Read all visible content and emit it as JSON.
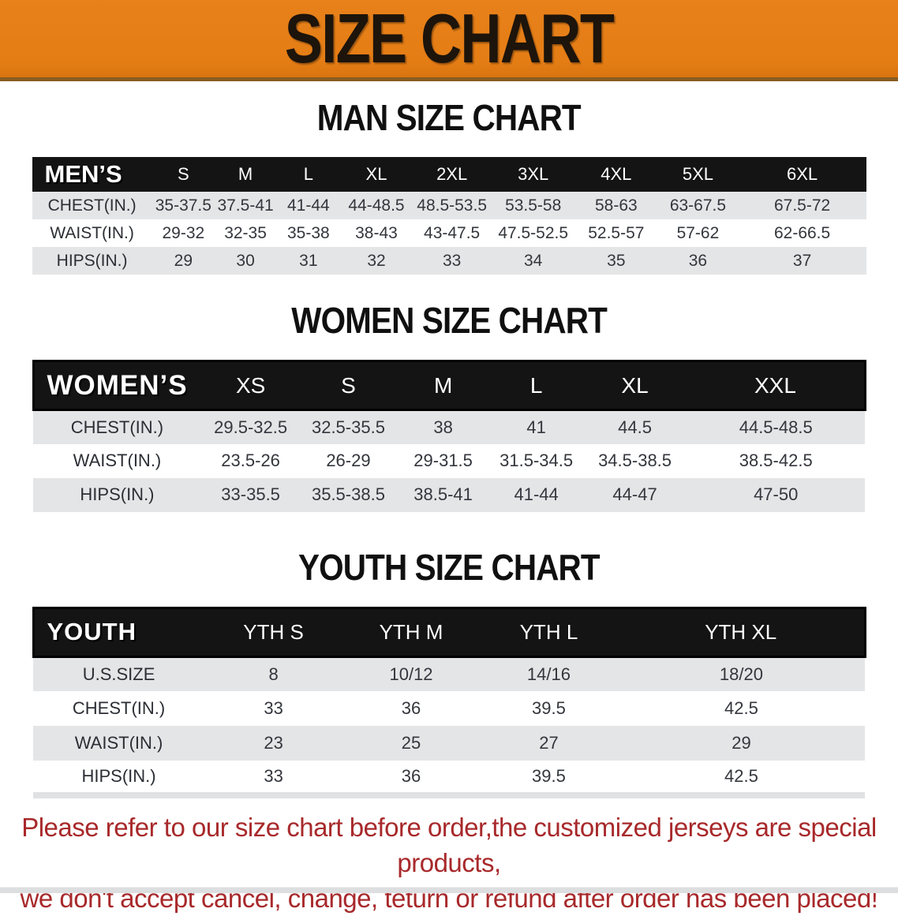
{
  "banner": {
    "title": "SIZE CHART",
    "bg_color": "#e57d15",
    "text_color": "#1d140b"
  },
  "colors": {
    "header_band": "#141414",
    "row_stripe": "#e4e5e7",
    "disclaimer_red": "#a8292b"
  },
  "chart_data": [
    {
      "type": "table",
      "title": "MAN SIZE CHART",
      "corner_label": "MEN’S",
      "columns": [
        "S",
        "M",
        "L",
        "XL",
        "2XL",
        "3XL",
        "4XL",
        "5XL",
        "6XL"
      ],
      "rows": [
        {
          "label": "CHEST(IN.)",
          "values": [
            "35-37.5",
            "37.5-41",
            "41-44",
            "44-48.5",
            "48.5-53.5",
            "53.5-58",
            "58-63",
            "63-67.5",
            "67.5-72"
          ]
        },
        {
          "label": "WAIST(IN.)",
          "values": [
            "29-32",
            "32-35",
            "35-38",
            "38-43",
            "43-47.5",
            "47.5-52.5",
            "52.5-57",
            "57-62",
            "62-66.5"
          ]
        },
        {
          "label": "HIPS(IN.)",
          "values": [
            "29",
            "30",
            "31",
            "32",
            "33",
            "34",
            "35",
            "36",
            "37"
          ]
        }
      ]
    },
    {
      "type": "table",
      "title": "WOMEN SIZE CHART",
      "corner_label": "WOMEN’S",
      "columns": [
        "XS",
        "S",
        "M",
        "L",
        "XL",
        "XXL"
      ],
      "rows": [
        {
          "label": "CHEST(IN.)",
          "values": [
            "29.5-32.5",
            "32.5-35.5",
            "38",
            "41",
            "44.5",
            "44.5-48.5"
          ]
        },
        {
          "label": "WAIST(IN.)",
          "values": [
            "23.5-26",
            "26-29",
            "29-31.5",
            "31.5-34.5",
            "34.5-38.5",
            "38.5-42.5"
          ]
        },
        {
          "label": "HIPS(IN.)",
          "values": [
            "33-35.5",
            "35.5-38.5",
            "38.5-41",
            "41-44",
            "44-47",
            "47-50"
          ]
        }
      ]
    },
    {
      "type": "table",
      "title": "YOUTH SIZE CHART",
      "corner_label": "YOUTH",
      "columns": [
        "YTH S",
        "YTH M",
        "YTH L",
        "YTH XL"
      ],
      "rows": [
        {
          "label": "U.S.SIZE",
          "values": [
            "8",
            "10/12",
            "14/16",
            "18/20"
          ]
        },
        {
          "label": "CHEST(IN.)",
          "values": [
            "33",
            "36",
            "39.5",
            "42.5"
          ]
        },
        {
          "label": "WAIST(IN.)",
          "values": [
            "23",
            "25",
            "27",
            "29"
          ]
        },
        {
          "label": "HIPS(IN.)",
          "values": [
            "33",
            "36",
            "39.5",
            "42.5"
          ]
        }
      ]
    }
  ],
  "disclaimer": {
    "lines": [
      "Please refer to our size chart before order,the customized jerseys are special products,",
      "we don't accept cancel, change, teturn or refund after order has been placed!"
    ]
  }
}
